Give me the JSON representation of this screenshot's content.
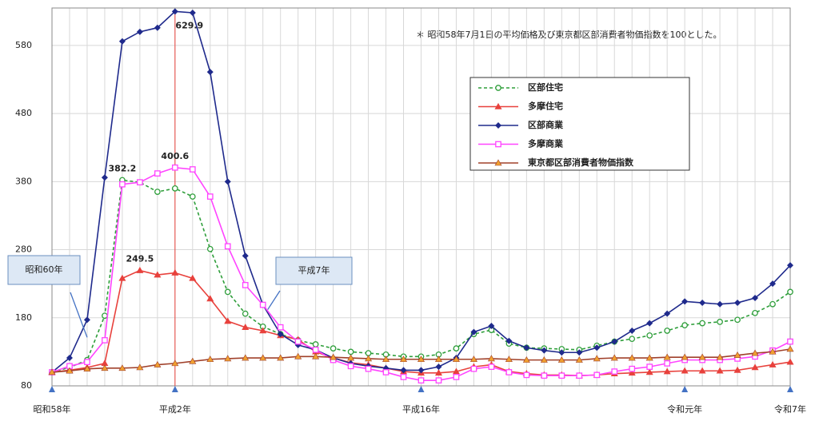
{
  "chart_data": {
    "type": "line",
    "note": "＊ 昭和58年7月1日の平均価格及び東京都区部消費者物価指数を100とした。",
    "categories": [
      "昭和58年",
      null,
      null,
      null,
      null,
      null,
      null,
      "平成2年",
      null,
      null,
      null,
      null,
      null,
      null,
      null,
      null,
      null,
      null,
      null,
      null,
      null,
      "平成16年",
      null,
      null,
      null,
      null,
      null,
      null,
      null,
      null,
      null,
      null,
      null,
      null,
      null,
      null,
      "令和元年",
      null,
      null,
      null,
      null,
      null,
      "令和7年"
    ],
    "ylim": [
      80,
      635
    ],
    "yticks": [
      80,
      180,
      280,
      380,
      480,
      580
    ],
    "grid": true,
    "series": [
      {
        "name": "区部住宅",
        "color": "#2e9e3a",
        "marker": "circle-open",
        "dashed": true,
        "label_index": 4,
        "values": [
          100,
          107,
          118,
          183,
          382.2,
          379,
          365,
          370,
          358,
          281,
          218,
          186,
          167,
          156,
          147,
          141,
          135,
          130,
          128,
          126,
          123,
          123,
          126,
          135,
          156,
          162,
          142,
          136,
          135,
          134,
          133,
          139,
          145,
          149,
          154,
          161,
          169,
          172,
          174,
          177,
          187,
          200,
          218
        ]
      },
      {
        "name": "多摩住宅",
        "color": "#e8413c",
        "marker": "triangle",
        "label_index": 5,
        "values": [
          100,
          103,
          107,
          113,
          238,
          249.5,
          243,
          246,
          238,
          208,
          175,
          166,
          161,
          154,
          148,
          130,
          121,
          114,
          111,
          106,
          101,
          99,
          99,
          101,
          108,
          111,
          101,
          98,
          96,
          96,
          95,
          96,
          98,
          99,
          100,
          101,
          102,
          102,
          102,
          103,
          107,
          111,
          115
        ]
      },
      {
        "name": "区部商業",
        "color": "#1f2a8c",
        "marker": "diamond",
        "label_index": 7,
        "values": [
          100,
          121,
          177,
          386,
          586,
          600,
          606,
          629.9,
          628,
          541,
          380,
          271,
          199,
          156,
          140,
          133,
          121,
          113,
          109,
          106,
          103,
          103,
          108,
          121,
          159,
          168,
          146,
          136,
          132,
          129,
          129,
          136,
          145,
          161,
          172,
          186,
          204,
          202,
          200,
          202,
          209,
          230,
          257
        ]
      },
      {
        "name": "多摩商業",
        "color": "#ff44ff",
        "marker": "square-open",
        "label_index": 7,
        "values": [
          100,
          109,
          115,
          147,
          376,
          379,
          392,
          400.6,
          398,
          358,
          285,
          228,
          199,
          166,
          145,
          133,
          118,
          109,
          105,
          100,
          93,
          88,
          88,
          93,
          105,
          108,
          100,
          96,
          95,
          95,
          95,
          96,
          101,
          105,
          108,
          113,
          118,
          118,
          118,
          120,
          123,
          132,
          145
        ]
      },
      {
        "name": "東京都区部消費者物価指数",
        "color": "#a0402a",
        "marker": "triangle",
        "marker_color": "#f0a030",
        "values": [
          100,
          102,
          105,
          106,
          106,
          107,
          111,
          113,
          116,
          119,
          120,
          121,
          121,
          121,
          123,
          123,
          122,
          121,
          120,
          119,
          119,
          119,
          119,
          119,
          119,
          120,
          119,
          118,
          118,
          118,
          118,
          120,
          121,
          121,
          121,
          122,
          122,
          122,
          122,
          125,
          128,
          130,
          134
        ]
      }
    ],
    "annotations": [
      {
        "text": "昭和60年",
        "index": 2
      },
      {
        "text": "平成7年",
        "index": 12
      }
    ]
  }
}
